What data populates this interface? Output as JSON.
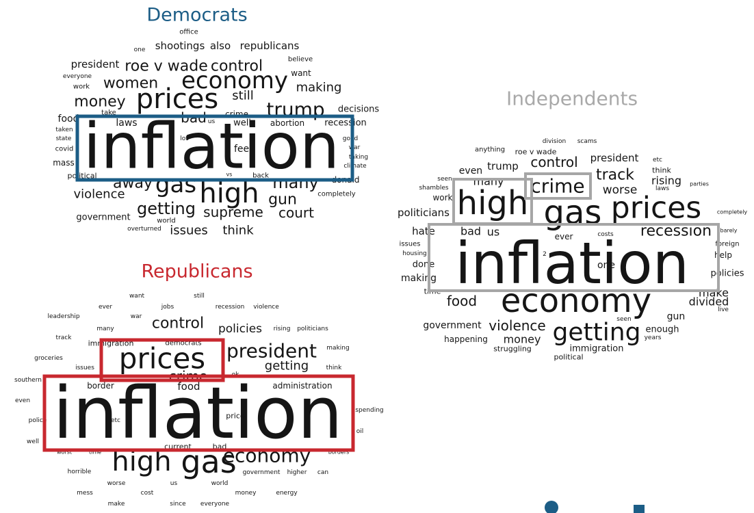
{
  "clouds": [
    {
      "title": "Democrats",
      "words": [
        "office",
        "one",
        "shootings",
        "also",
        "republicans",
        "believe",
        "president",
        "roe v wade",
        "control",
        "want",
        "everyone",
        "economy",
        "women",
        "work",
        "making",
        "prices",
        "money",
        "still",
        "trump",
        "decisions",
        "food",
        "take",
        "bad",
        "crime",
        "laws",
        "us",
        "well",
        "abortion",
        "recession",
        "taken",
        "state",
        "lot",
        "good",
        "war",
        "covid",
        "feel",
        "taking",
        "inflation",
        "mass",
        "climate",
        "political",
        "vs",
        "back",
        "away",
        "gas",
        "many",
        "donald",
        "violence",
        "high",
        "completely",
        "getting",
        "supreme",
        "gun",
        "court",
        "government",
        "world",
        "overturned",
        "issues",
        "think"
      ]
    },
    {
      "title": "Independents",
      "words": [
        "division",
        "scams",
        "anything",
        "roe v wade",
        "president",
        "etc",
        "think",
        "even",
        "trump",
        "control",
        "track",
        "seen",
        "many",
        "crime",
        "rising",
        "laws",
        "parties",
        "shambles",
        "high",
        "worse",
        "work",
        "gas",
        "prices",
        "politicians",
        "completely",
        "hate",
        "bad",
        "us",
        "ever",
        "costs",
        "recession",
        "barely",
        "issues",
        "foreign",
        "housing",
        "2",
        "help",
        "done",
        "one",
        "inflation",
        "making",
        "policies",
        "time",
        "make",
        "food",
        "economy",
        "divided",
        "live",
        "gun",
        "government",
        "violence",
        "seen",
        "enough",
        "getting",
        "years",
        "happening",
        "money",
        "struggling",
        "immigration",
        "political"
      ]
    },
    {
      "title": "Republicans",
      "words": [
        "want",
        "still",
        "ever",
        "jobs",
        "recession",
        "violence",
        "leadership",
        "war",
        "many",
        "control",
        "policies",
        "rising",
        "politicians",
        "track",
        "immigration",
        "democrats",
        "president",
        "making",
        "groceries",
        "prices",
        "issues",
        "getting",
        "think",
        "crime",
        "ok",
        "southern",
        "border",
        "food",
        "administration",
        "even",
        "inflation",
        "spending",
        "police",
        "etc",
        "price",
        "oil",
        "well",
        "current",
        "bad",
        "worst",
        "time",
        "borders",
        "high",
        "gas",
        "economy",
        "horrible",
        "government",
        "higher",
        "can",
        "worse",
        "us",
        "world",
        "mess",
        "cost",
        "money",
        "energy",
        "make",
        "since",
        "everyone"
      ]
    }
  ]
}
